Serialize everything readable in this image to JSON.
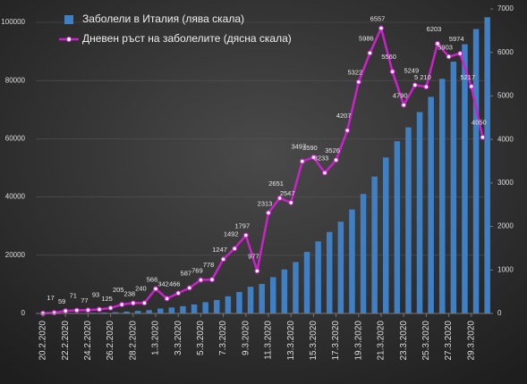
{
  "chart_data": {
    "type": "bar-line",
    "categories": [
      "20.2.2020",
      null,
      "22.2.2020",
      null,
      "24.2.2020",
      null,
      "26.2.2020",
      null,
      "28.2.2020",
      null,
      "1.3.2020",
      null,
      "3.3.2020",
      null,
      "5.3.2020",
      null,
      "7.3.2020",
      null,
      "9.3.2020",
      null,
      "11.3.2020",
      null,
      "13.3.2020",
      null,
      "15.3.2020",
      null,
      "17.3.2020",
      null,
      "19.3.2020",
      null,
      "21.3.2020",
      null,
      "23.3.2020",
      null,
      "25.3.2020",
      null,
      "27.3.2020",
      null,
      "29.3.2020",
      null
    ],
    "series": [
      {
        "name": "Заболели в Италия (лява скала)",
        "color": "#3f7fc4",
        "kind": "bar",
        "values": [
          3,
          20,
          79,
          150,
          229,
          322,
          453,
          650,
          888,
          1128,
          1694,
          2036,
          2502,
          3089,
          3858,
          4636,
          5883,
          7375,
          9172,
          10149,
          12462,
          15113,
          17660,
          21157,
          24747,
          27980,
          31506,
          35713,
          41035,
          47021,
          53578,
          59138,
          63927,
          69176,
          74386,
          80589,
          86498,
          92472,
          97689,
          101739
        ]
      },
      {
        "name": "Дневен ръст на заболелите (дясна скала)",
        "color": "#cc22cc",
        "kind": "line",
        "axis": "y2",
        "values": [
          3,
          17,
          59,
          71,
          77,
          93,
          125,
          205,
          238,
          240,
          566,
          342,
          466,
          587,
          769,
          778,
          1247,
          1492,
          1797,
          977,
          2313,
          2651,
          2547,
          3497,
          3590,
          3233,
          3526,
          4207,
          5322,
          5986,
          6557,
          5560,
          4790,
          5249,
          5210,
          6203,
          5903,
          5974,
          5217,
          4050
        ],
        "value_labels": [
          null,
          "17",
          "59",
          "71",
          "77",
          "93",
          "125",
          "205",
          "238",
          "240",
          "566",
          "342",
          "466",
          "587",
          "769",
          "778",
          "1247",
          "1492",
          "1797",
          "977",
          "2313",
          "2651",
          "2547",
          "3497",
          "3590",
          "3233",
          "3526",
          "4207",
          "5322",
          "5986",
          "6557",
          "5560",
          "4790",
          "5249",
          "5 210",
          "6203",
          "5903",
          "5974",
          "5217",
          "4050"
        ]
      }
    ],
    "ylim": [
      0,
      104600
    ],
    "yticks": [
      0,
      20000,
      40000,
      60000,
      80000,
      100000
    ],
    "y2lim": [
      0,
      7000
    ],
    "y2ticks": [
      0,
      1000,
      2000,
      3000,
      4000,
      5000,
      6000,
      7000
    ],
    "grid": true,
    "legend": "top-left"
  }
}
